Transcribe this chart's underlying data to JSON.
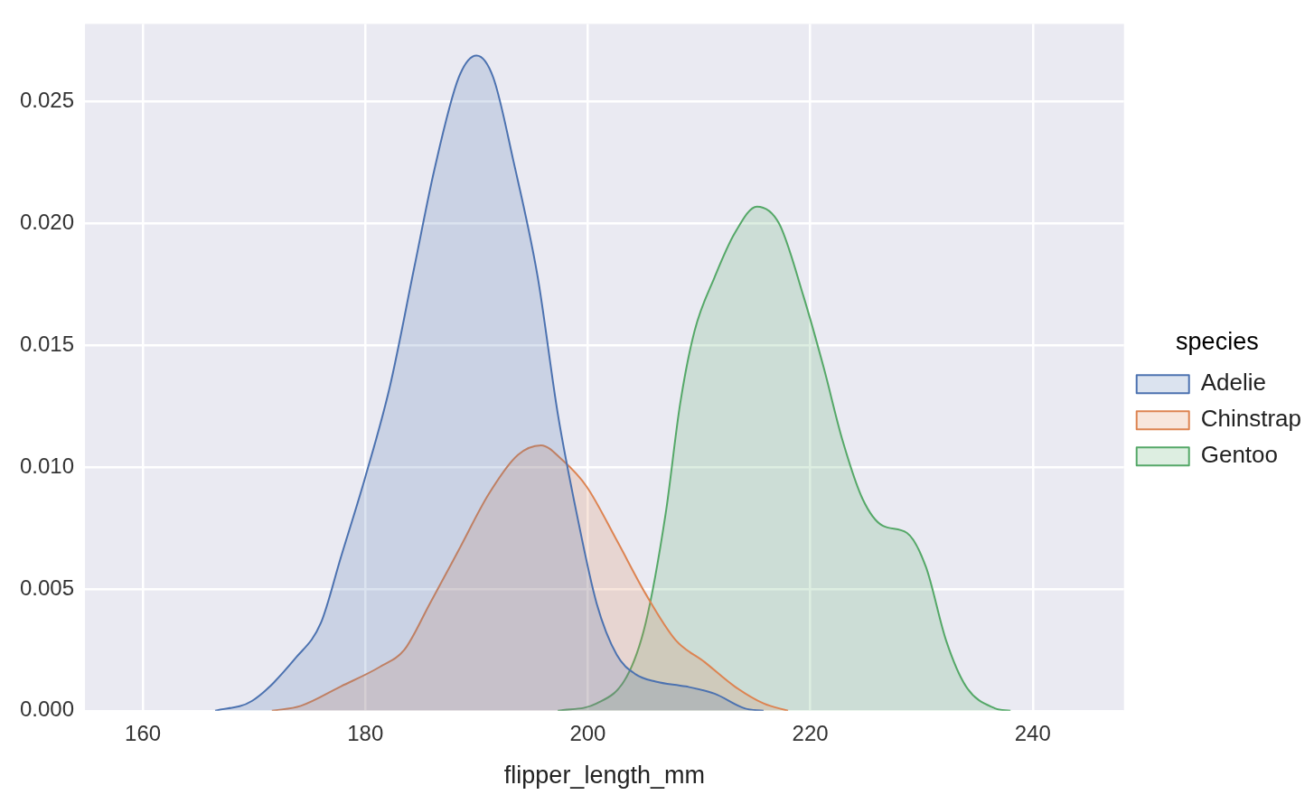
{
  "chart_data": {
    "type": "area",
    "xlabel": "flipper_length_mm",
    "legend_title": "species",
    "legend": "right",
    "grid": true,
    "marker": "none",
    "xlim": [
      154.8,
      248.2
    ],
    "ylim": [
      0,
      0.0282
    ],
    "xticks": [
      160,
      180,
      200,
      220,
      240
    ],
    "yticks": [
      {
        "value": 0,
        "label": "0.000"
      },
      {
        "value": 0.005,
        "label": "0.005"
      },
      {
        "value": 0.01,
        "label": "0.010"
      },
      {
        "value": 0.015,
        "label": "0.015"
      },
      {
        "value": 0.02,
        "label": "0.020"
      },
      {
        "value": 0.025,
        "label": "0.025"
      }
    ],
    "series": [
      {
        "name": "Adelie",
        "color": "#4c72b0",
        "x": [
          166.5,
          169.8,
          173.8,
          176,
          177.8,
          180,
          182.2,
          184.4,
          186.2,
          188.4,
          190,
          191.5,
          193.3,
          195.5,
          197.3,
          199,
          200.8,
          202.6,
          204.3,
          206.1,
          208.8,
          211.4,
          214.1,
          215.8
        ],
        "values": [
          0,
          0.0004,
          0.0022,
          0.0036,
          0.0063,
          0.0096,
          0.0133,
          0.0182,
          0.0222,
          0.026,
          0.0269,
          0.026,
          0.0226,
          0.0178,
          0.0122,
          0.0081,
          0.0044,
          0.0023,
          0.0015,
          0.0012,
          0.001,
          0.0007,
          0.0001,
          0
        ]
      },
      {
        "name": "Chinstrap",
        "color": "#dd8452",
        "x": [
          171.6,
          174.2,
          177.8,
          181.3,
          183.5,
          185.8,
          188.4,
          191.1,
          193.7,
          195.8,
          197.7,
          199.9,
          202.6,
          205.2,
          207.9,
          210.5,
          213.2,
          215.8,
          218
        ],
        "values": [
          0,
          0.0002,
          0.001,
          0.0018,
          0.0025,
          0.0044,
          0.0066,
          0.0089,
          0.0105,
          0.0109,
          0.0103,
          0.0092,
          0.007,
          0.0048,
          0.0029,
          0.002,
          0.001,
          0.0003,
          0
        ]
      },
      {
        "name": "Gentoo",
        "color": "#55a868",
        "x": [
          197.3,
          200.8,
          203.5,
          205.2,
          207,
          208.3,
          209.6,
          211.4,
          213.2,
          215.2,
          217.2,
          219.4,
          221.2,
          222.9,
          224.7,
          226.5,
          228.7,
          230.4,
          232.2,
          234,
          236.6,
          238
        ],
        "values": [
          0,
          0.0003,
          0.0014,
          0.0036,
          0.0081,
          0.0126,
          0.0156,
          0.0178,
          0.0196,
          0.0207,
          0.02,
          0.017,
          0.0141,
          0.0111,
          0.0087,
          0.0076,
          0.0073,
          0.0059,
          0.0029,
          0.001,
          0.0001,
          0
        ]
      }
    ]
  }
}
